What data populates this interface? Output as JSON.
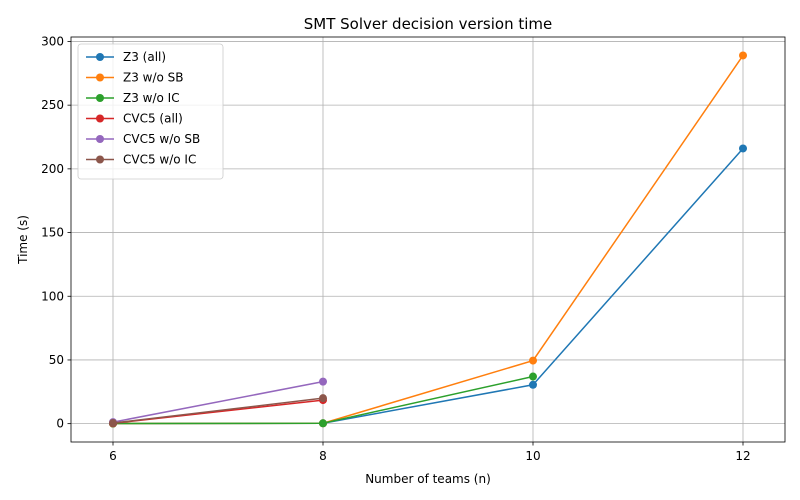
{
  "chart_data": {
    "type": "line",
    "title": "SMT Solver decision version time",
    "xlabel": "Number of teams (n)",
    "ylabel": "Time (s)",
    "xlim": [
      5.6,
      12.4
    ],
    "ylim": [
      -14.4,
      303.5
    ],
    "xticks": [
      6,
      8,
      10,
      12
    ],
    "yticks": [
      0,
      50,
      100,
      150,
      200,
      250,
      300
    ],
    "grid": true,
    "legend_position": "top-left",
    "series": [
      {
        "name": "Z3 (all)",
        "color": "#1f77b4",
        "x": [
          6,
          8,
          10,
          12
        ],
        "y": [
          0.1,
          0.3,
          30.5,
          216
        ]
      },
      {
        "name": "Z3 w/o SB",
        "color": "#ff7f0e",
        "x": [
          6,
          8,
          10,
          12
        ],
        "y": [
          0.1,
          0.3,
          49.5,
          289
        ]
      },
      {
        "name": "Z3 w/o IC",
        "color": "#2ca02c",
        "x": [
          6,
          8,
          10
        ],
        "y": [
          0.1,
          0.3,
          37
        ]
      },
      {
        "name": "CVC5 (all)",
        "color": "#d62728",
        "x": [
          6,
          8
        ],
        "y": [
          0.3,
          18.5
        ]
      },
      {
        "name": "CVC5 w/o SB",
        "color": "#9467bd",
        "x": [
          6,
          8
        ],
        "y": [
          1.2,
          33
        ]
      },
      {
        "name": "CVC5 w/o IC",
        "color": "#8c564b",
        "x": [
          6,
          8
        ],
        "y": [
          0.5,
          20
        ]
      }
    ]
  }
}
